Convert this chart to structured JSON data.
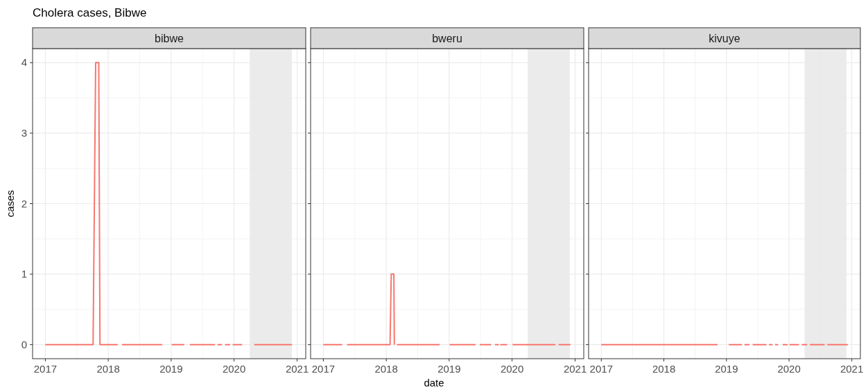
{
  "chart_data": [
    {
      "type": "line",
      "title": "Cholera cases, Bibwe",
      "subtitle": "bibwe",
      "ylabel": "cases",
      "xlim": [
        "2016-10-19",
        "2021-02-20"
      ],
      "ylim": [
        -0.2,
        4.2
      ],
      "xticks": [
        {
          "value": "2017-01-01",
          "label": "2017"
        },
        {
          "value": "2018-01-01",
          "label": "2018"
        },
        {
          "value": "2019-01-01",
          "label": "2019"
        },
        {
          "value": "2020-01-01",
          "label": "2020"
        },
        {
          "value": "2021-01-01",
          "label": "2021"
        }
      ],
      "yticks": [
        0,
        1,
        2,
        3,
        4
      ],
      "grid": true,
      "bands": [
        {
          "axis": "x",
          "from": "2020-04-01",
          "to": "2020-12-01",
          "color": "#ebebeb"
        }
      ],
      "series": [
        {
          "color": "#f8766d",
          "x": [
            "2017-01-01",
            "2017-10-05",
            "2017-10-20",
            "2017-11-07",
            "2017-11-14",
            "2018-02-25",
            "2018-03-04",
            "2018-03-22",
            "2018-11-10",
            "2018-12-01",
            "2019-01-04",
            "2019-03-18",
            "2019-03-25",
            "2019-04-20",
            "2019-09-13",
            "2019-09-20",
            "2019-09-27",
            "2019-10-23",
            "2019-10-28",
            "2019-11-10",
            "2019-12-09",
            "2019-12-15",
            "2019-12-24",
            "2020-02-17",
            "2020-03-10",
            "2020-04-27",
            "2020-12-02"
          ],
          "values": [
            0,
            0,
            4,
            4,
            0,
            0,
            null,
            0,
            0,
            null,
            0,
            0,
            null,
            0,
            0,
            null,
            0,
            0,
            null,
            0,
            0,
            null,
            0,
            0,
            null,
            0,
            0
          ]
        }
      ]
    },
    {
      "type": "line",
      "subtitle": "bweru",
      "xlabel": "date",
      "xlim": [
        "2016-10-19",
        "2021-02-20"
      ],
      "ylim": [
        -0.2,
        4.2
      ],
      "xticks": [
        {
          "value": "2017-01-01",
          "label": "2017"
        },
        {
          "value": "2018-01-01",
          "label": "2018"
        },
        {
          "value": "2019-01-01",
          "label": "2019"
        },
        {
          "value": "2020-01-01",
          "label": "2020"
        },
        {
          "value": "2021-01-01",
          "label": "2021"
        }
      ],
      "yticks": [
        0,
        1,
        2,
        3,
        4
      ],
      "tick_labels": "x",
      "grid": true,
      "bands": [
        {
          "axis": "x",
          "from": "2020-04-01",
          "to": "2020-12-01",
          "color": "#ebebeb"
        }
      ],
      "series": [
        {
          "color": "#f8766d",
          "x": [
            "2017-01-01",
            "2017-04-20",
            "2017-04-30",
            "2017-05-19",
            "2018-01-15",
            "2018-01-23",
            "2018-01-30",
            "2018-02-14",
            "2018-02-17",
            "2018-02-22",
            "2018-03-04",
            "2018-11-07",
            "2018-12-01",
            "2019-01-04",
            "2019-06-03",
            "2019-06-15",
            "2019-06-28",
            "2019-09-02",
            "2019-09-15",
            "2019-09-24",
            "2019-10-16",
            "2019-10-18",
            "2019-10-24",
            "2019-12-03",
            "2019-12-15",
            "2020-01-04",
            "2020-09-09",
            "2020-09-20",
            "2020-09-27",
            "2020-12-05"
          ],
          "values": [
            0,
            0,
            null,
            0,
            0,
            0,
            1,
            1,
            0,
            null,
            0,
            0,
            null,
            0,
            0,
            null,
            0,
            0,
            null,
            0,
            0,
            null,
            0,
            0,
            null,
            0,
            0,
            null,
            0,
            0
          ]
        }
      ]
    },
    {
      "type": "line",
      "subtitle": "kivuye",
      "xlim": [
        "2016-10-19",
        "2021-02-20"
      ],
      "ylim": [
        -0.2,
        4.2
      ],
      "xticks": [
        {
          "value": "2017-01-01",
          "label": "2017"
        },
        {
          "value": "2018-01-01",
          "label": "2018"
        },
        {
          "value": "2019-01-01",
          "label": "2019"
        },
        {
          "value": "2020-01-01",
          "label": "2020"
        },
        {
          "value": "2021-01-01",
          "label": "2021"
        }
      ],
      "yticks": [
        0,
        1,
        2,
        3,
        4
      ],
      "tick_labels": "x",
      "grid": true,
      "bands": [
        {
          "axis": "x",
          "from": "2020-04-01",
          "to": "2020-12-01",
          "color": "#ebebeb"
        }
      ],
      "series": [
        {
          "color": "#f8766d",
          "x": [
            "2017-01-01",
            "2018-11-10",
            "2018-12-01",
            "2019-01-15",
            "2019-04-01",
            "2019-04-08",
            "2019-04-16",
            "2019-05-15",
            "2019-05-25",
            "2019-06-03",
            "2019-08-22",
            "2019-08-28",
            "2019-09-06",
            "2019-09-27",
            "2019-10-05",
            "2019-10-12",
            "2019-10-29",
            "2019-11-10",
            "2019-11-25",
            "2019-12-24",
            "2019-12-29",
            "2020-01-04",
            "2020-02-28",
            "2020-03-07",
            "2020-03-15",
            "2020-04-16",
            "2020-04-23",
            "2020-05-01",
            "2020-07-27",
            "2020-08-04",
            "2020-08-11",
            "2020-12-09"
          ],
          "values": [
            0,
            0,
            null,
            0,
            0,
            null,
            0,
            0,
            null,
            0,
            0,
            null,
            0,
            0,
            null,
            0,
            0,
            null,
            0,
            0,
            null,
            0,
            0,
            null,
            0,
            0,
            null,
            0,
            0,
            null,
            0,
            0
          ]
        }
      ]
    }
  ]
}
